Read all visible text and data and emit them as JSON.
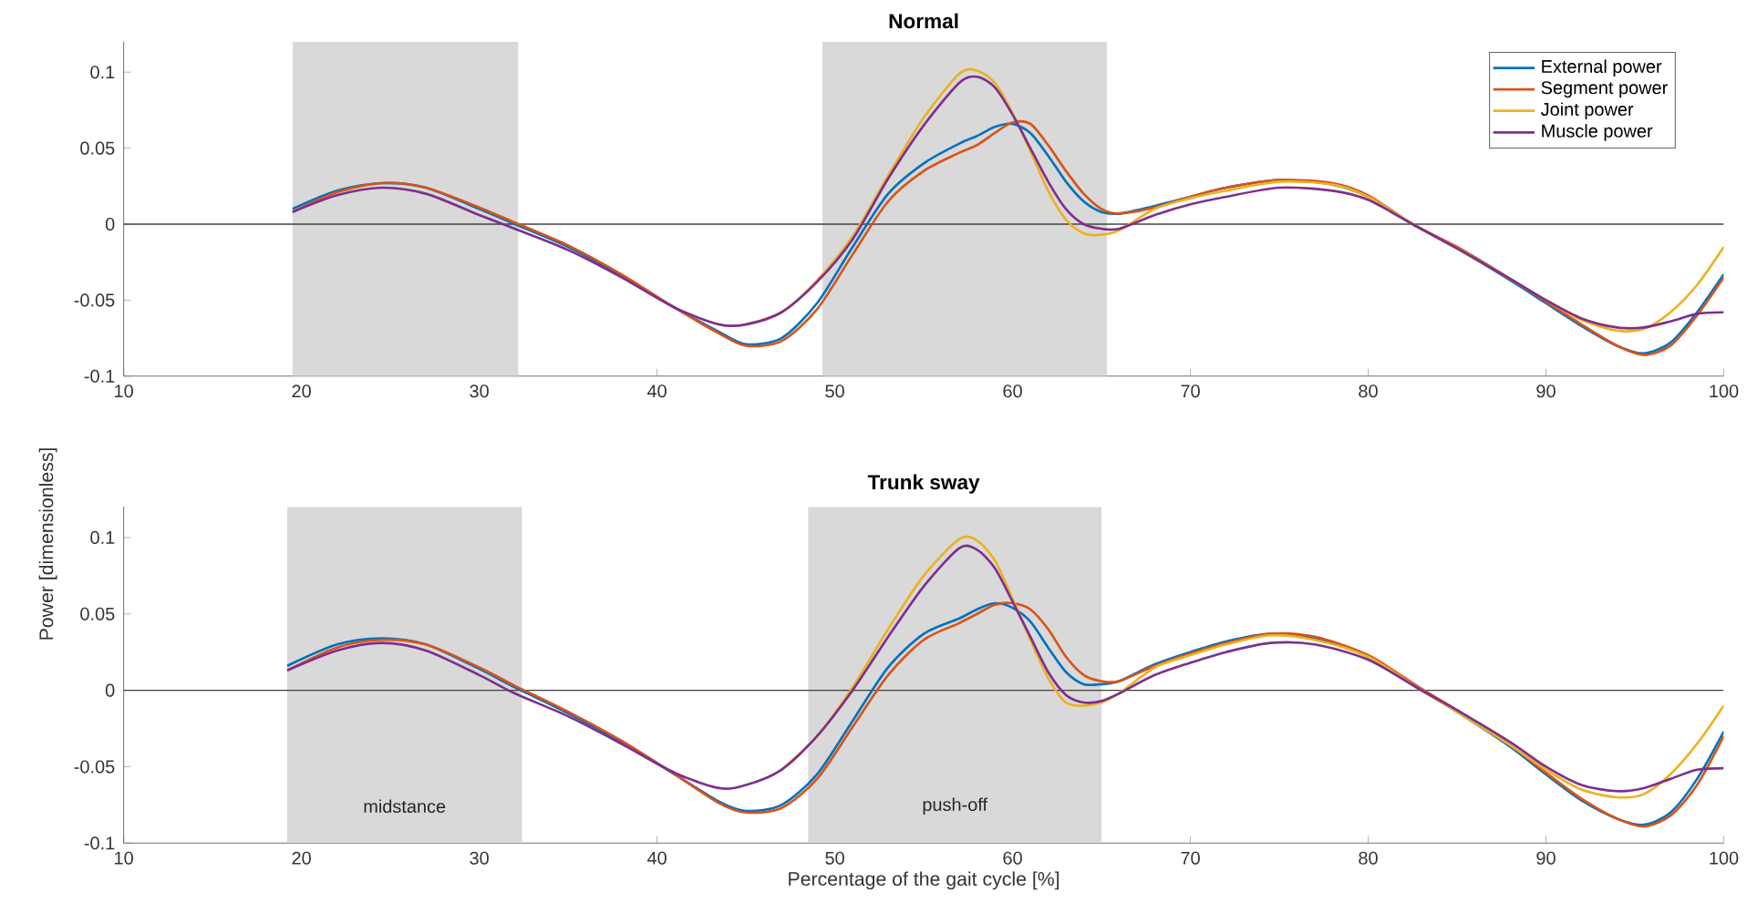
{
  "chart_data": [
    {
      "type": "line",
      "title": "Normal",
      "xlim": [
        10,
        100
      ],
      "ylim": [
        -0.1,
        0.12
      ],
      "xticks": [
        10,
        20,
        30,
        40,
        50,
        60,
        70,
        80,
        90,
        100
      ],
      "yticks": [
        -0.1,
        -0.05,
        0,
        0.05,
        0.1
      ],
      "grid": false,
      "legend": "top right",
      "x": [
        19.5,
        22,
        24.5,
        27,
        30,
        32,
        35,
        38,
        41,
        43.5,
        45,
        47,
        49,
        51,
        53,
        55,
        57,
        58,
        59,
        60,
        61,
        62,
        63,
        64,
        65,
        66,
        68,
        70,
        72,
        75,
        78,
        80,
        82.5,
        85,
        88,
        90,
        92,
        94,
        95.5,
        97,
        98.5,
        100
      ],
      "series": [
        {
          "name": "External power",
          "color": "#0072bd",
          "values": [
            0.01,
            0.022,
            0.027,
            0.024,
            0.01,
            0.0,
            -0.015,
            -0.034,
            -0.055,
            -0.071,
            -0.079,
            -0.075,
            -0.052,
            -0.015,
            0.02,
            0.04,
            0.053,
            0.058,
            0.064,
            0.066,
            0.06,
            0.045,
            0.028,
            0.015,
            0.008,
            0.007,
            0.012,
            0.018,
            0.024,
            0.029,
            0.026,
            0.018,
            0.0,
            -0.016,
            -0.037,
            -0.052,
            -0.067,
            -0.08,
            -0.085,
            -0.078,
            -0.058,
            -0.033
          ]
        },
        {
          "name": "Segment power",
          "color": "#d95319",
          "values": [
            0.008,
            0.021,
            0.027,
            0.024,
            0.011,
            0.001,
            -0.014,
            -0.033,
            -0.055,
            -0.072,
            -0.08,
            -0.077,
            -0.056,
            -0.02,
            0.015,
            0.035,
            0.047,
            0.052,
            0.06,
            0.067,
            0.066,
            0.052,
            0.035,
            0.02,
            0.01,
            0.007,
            0.011,
            0.018,
            0.024,
            0.029,
            0.027,
            0.019,
            0.0,
            -0.015,
            -0.036,
            -0.051,
            -0.066,
            -0.08,
            -0.086,
            -0.08,
            -0.06,
            -0.035
          ]
        },
        {
          "name": "Joint power",
          "color": "#edb120",
          "values": [
            null,
            null,
            null,
            null,
            null,
            null,
            null,
            null,
            null,
            null,
            -0.066,
            -0.058,
            -0.037,
            -0.008,
            0.032,
            0.07,
            0.099,
            0.101,
            0.093,
            0.073,
            0.048,
            0.022,
            0.003,
            -0.006,
            -0.007,
            -0.004,
            0.01,
            0.017,
            0.022,
            0.028,
            0.026,
            0.018,
            0.0,
            -0.016,
            -0.036,
            -0.05,
            -0.063,
            -0.07,
            -0.069,
            -0.058,
            -0.04,
            -0.015
          ]
        },
        {
          "name": "Muscle power",
          "color": "#7e2f8e",
          "values": [
            0.008,
            0.019,
            0.024,
            0.02,
            0.006,
            -0.003,
            -0.017,
            -0.035,
            -0.055,
            -0.066,
            -0.066,
            -0.058,
            -0.038,
            -0.01,
            0.03,
            0.065,
            0.093,
            0.097,
            0.09,
            0.072,
            0.05,
            0.028,
            0.01,
            0.0,
            -0.003,
            -0.003,
            0.006,
            0.013,
            0.018,
            0.024,
            0.022,
            0.016,
            0.0,
            -0.016,
            -0.036,
            -0.05,
            -0.062,
            -0.068,
            -0.068,
            -0.064,
            -0.059,
            -0.058
          ]
        }
      ],
      "bands": [
        {
          "axis": "x",
          "from": 19.5,
          "to": 32.2,
          "color": "#d9d9d9"
        },
        {
          "axis": "x",
          "from": 49.3,
          "to": 65.3,
          "color": "#d9d9d9"
        }
      ],
      "ref_lines": [
        {
          "axis": "y",
          "value": 0,
          "color": "#404040"
        }
      ]
    },
    {
      "type": "line",
      "title": "Trunk sway",
      "xlabel": "Percentage of the gait cycle [%]",
      "ylabel": "Power [dimensionless]",
      "xlim": [
        10,
        100
      ],
      "ylim": [
        -0.1,
        0.12
      ],
      "xticks": [
        10,
        20,
        30,
        40,
        50,
        60,
        70,
        80,
        90,
        100
      ],
      "yticks": [
        -0.1,
        -0.05,
        0,
        0.05,
        0.1
      ],
      "grid": false,
      "legend": false,
      "x": [
        19.2,
        22,
        24.5,
        27,
        30,
        32,
        35,
        38,
        41,
        43.5,
        45,
        47,
        49,
        51,
        53,
        55,
        57,
        58,
        59,
        60,
        61,
        62,
        63,
        64,
        65,
        66,
        68,
        70,
        72,
        74.5,
        77,
        80,
        83,
        85,
        88,
        90,
        92,
        94,
        95.5,
        97,
        98.5,
        100
      ],
      "series": [
        {
          "color": "#0072bd",
          "values": [
            0.016,
            0.03,
            0.034,
            0.03,
            0.014,
            0.002,
            -0.015,
            -0.034,
            -0.055,
            -0.073,
            -0.079,
            -0.075,
            -0.055,
            -0.02,
            0.015,
            0.037,
            0.047,
            0.053,
            0.057,
            0.054,
            0.045,
            0.028,
            0.012,
            0.004,
            0.004,
            0.006,
            0.017,
            0.025,
            0.032,
            0.037,
            0.034,
            0.022,
            0.0,
            -0.014,
            -0.037,
            -0.055,
            -0.072,
            -0.084,
            -0.088,
            -0.08,
            -0.058,
            -0.027
          ]
        },
        {
          "color": "#d95319",
          "values": [
            0.013,
            0.028,
            0.033,
            0.03,
            0.015,
            0.003,
            -0.014,
            -0.033,
            -0.055,
            -0.074,
            -0.08,
            -0.077,
            -0.058,
            -0.024,
            0.01,
            0.033,
            0.044,
            0.05,
            0.056,
            0.057,
            0.053,
            0.04,
            0.022,
            0.01,
            0.006,
            0.006,
            0.016,
            0.024,
            0.031,
            0.037,
            0.035,
            0.023,
            0.001,
            -0.013,
            -0.036,
            -0.054,
            -0.071,
            -0.084,
            -0.089,
            -0.082,
            -0.062,
            -0.03
          ]
        },
        {
          "color": "#edb120",
          "values": [
            null,
            null,
            null,
            null,
            null,
            null,
            null,
            null,
            null,
            null,
            null,
            -0.052,
            -0.03,
            0.002,
            0.04,
            0.075,
            0.099,
            0.098,
            0.085,
            0.06,
            0.033,
            0.008,
            -0.008,
            -0.01,
            -0.008,
            -0.002,
            0.015,
            0.023,
            0.03,
            0.036,
            0.033,
            0.022,
            0.0,
            -0.014,
            -0.036,
            -0.052,
            -0.065,
            -0.07,
            -0.068,
            -0.055,
            -0.035,
            -0.01
          ]
        },
        {
          "color": "#7e2f8e",
          "values": [
            0.013,
            0.026,
            0.031,
            0.026,
            0.01,
            -0.002,
            -0.017,
            -0.035,
            -0.054,
            -0.064,
            -0.062,
            -0.052,
            -0.03,
            0.0,
            0.035,
            0.068,
            0.093,
            0.092,
            0.08,
            0.058,
            0.035,
            0.012,
            -0.003,
            -0.008,
            -0.007,
            -0.002,
            0.01,
            0.018,
            0.025,
            0.031,
            0.03,
            0.02,
            0.0,
            -0.013,
            -0.034,
            -0.05,
            -0.062,
            -0.066,
            -0.064,
            -0.058,
            -0.052,
            -0.051
          ]
        }
      ],
      "bands": [
        {
          "axis": "x",
          "from": 19.2,
          "to": 32.4,
          "label": "midstance",
          "color": "#d9d9d9"
        },
        {
          "axis": "x",
          "from": 48.5,
          "to": 65,
          "label": "push-off",
          "color": "#d9d9d9"
        }
      ],
      "ref_lines": [
        {
          "axis": "y",
          "value": 0,
          "color": "#404040"
        }
      ]
    }
  ]
}
